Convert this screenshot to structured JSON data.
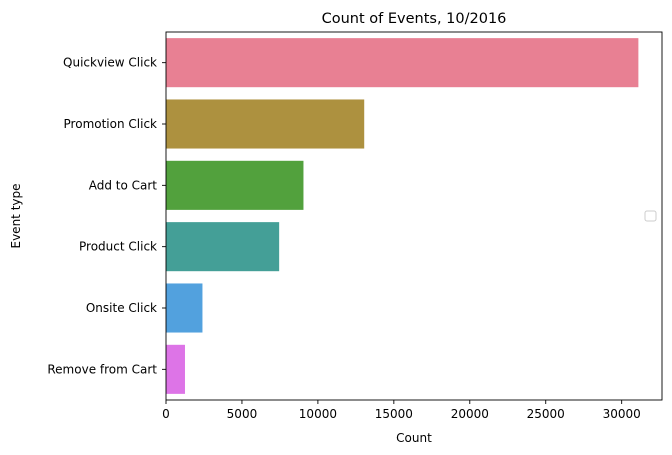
{
  "chart_data": {
    "type": "bar",
    "orientation": "horizontal",
    "title": "Count of Events, 10/2016",
    "xlabel": "Count",
    "ylabel": "Event type",
    "categories": [
      "Quickview Click",
      "Promotion Click",
      "Add to Cart",
      "Product Click",
      "Onsite Click",
      "Remove from Cart"
    ],
    "values": [
      31100,
      13050,
      9050,
      7450,
      2400,
      1250
    ],
    "colors": [
      "#e88093",
      "#ad913f",
      "#52a13d",
      "#449f97",
      "#52a1de",
      "#dd74e7"
    ],
    "xlim": [
      0,
      32655
    ],
    "xticks": [
      0,
      5000,
      10000,
      15000,
      20000,
      25000,
      30000
    ],
    "grid": false,
    "legend": {
      "position": "center-right",
      "entries": []
    }
  }
}
